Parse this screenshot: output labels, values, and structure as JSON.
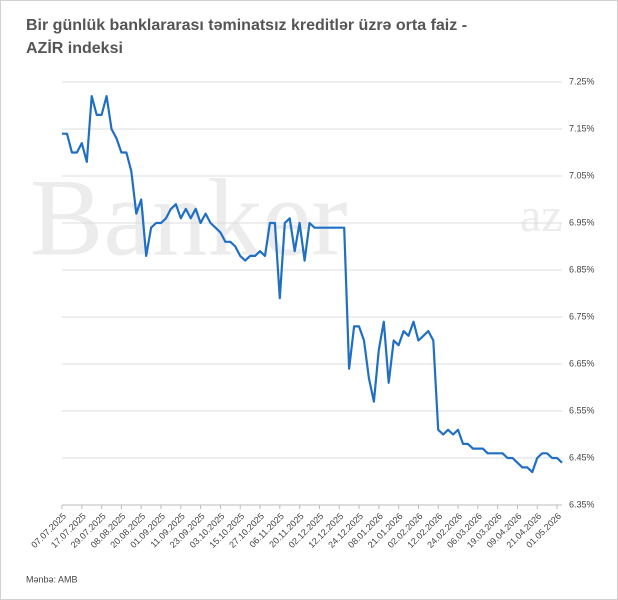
{
  "chart_data": {
    "type": "line",
    "title_lines": [
      "Bir günlük banklararası təminatsız kreditlər üzrə orta faiz -",
      "AZİR indeksi"
    ],
    "watermark": "Banker",
    "watermark_suffix": "az",
    "source": "Mənbə: AMB",
    "color": "#1f6fc5",
    "grid": true,
    "ylim": [
      6.35,
      7.25
    ],
    "yticks": [
      {
        "value": 6.35,
        "label": "6.35%"
      },
      {
        "value": 6.45,
        "label": "6.45%"
      },
      {
        "value": 6.55,
        "label": "6.55%"
      },
      {
        "value": 6.65,
        "label": "6.65%"
      },
      {
        "value": 6.75,
        "label": "6.75%"
      },
      {
        "value": 6.85,
        "label": "6.85%"
      },
      {
        "value": 6.95,
        "label": "6.95%"
      },
      {
        "value": 7.05,
        "label": "7.05%"
      },
      {
        "value": 7.15,
        "label": "7.15%"
      },
      {
        "value": 7.25,
        "label": "7.25%"
      }
    ],
    "categories": [
      "07.07.2025",
      null,
      null,
      null,
      "17.07.2025",
      null,
      null,
      null,
      "29.07.2025",
      null,
      null,
      null,
      "08.08.2025",
      null,
      null,
      null,
      "20.08.2025",
      null,
      null,
      null,
      "01.09.2025",
      null,
      null,
      null,
      "11.09.2025",
      null,
      null,
      null,
      "23.09.2025",
      null,
      null,
      null,
      "03.10.2025",
      null,
      null,
      null,
      "15.10.2025",
      null,
      null,
      null,
      "27.10.2025",
      null,
      null,
      null,
      "06.11.2025",
      null,
      null,
      null,
      "20.11.2025",
      null,
      null,
      null,
      "02.12.2025",
      null,
      null,
      null,
      "12.12.2025",
      null,
      null,
      null,
      "24.12.2025",
      null,
      null,
      null,
      "08.01.2026",
      null,
      null,
      null,
      "21.01.2026",
      null,
      null,
      null,
      "02.02.2026",
      null,
      null,
      null,
      "12.02.2026",
      null,
      null,
      null,
      "24.02.2026",
      null,
      null,
      null,
      "06.03.2026",
      null,
      null,
      null,
      "19.03.2026",
      null,
      null,
      null,
      "09.04.2026",
      null,
      null,
      null,
      "21.04.2026",
      null,
      null,
      null,
      "01.05.2026",
      null
    ],
    "values": [
      7.14,
      7.14,
      7.1,
      7.1,
      7.12,
      7.08,
      7.22,
      7.18,
      7.18,
      7.22,
      7.15,
      7.13,
      7.1,
      7.1,
      7.06,
      6.97,
      7.0,
      6.88,
      6.94,
      6.95,
      6.95,
      6.96,
      6.98,
      6.99,
      6.96,
      6.98,
      6.96,
      6.98,
      6.95,
      6.97,
      6.95,
      6.94,
      6.93,
      6.91,
      6.91,
      6.9,
      6.88,
      6.87,
      6.88,
      6.88,
      6.89,
      6.88,
      6.95,
      6.95,
      6.79,
      6.95,
      6.96,
      6.89,
      6.95,
      6.87,
      6.95,
      6.94,
      6.94,
      6.94,
      6.94,
      6.94,
      6.94,
      6.94,
      6.64,
      6.73,
      6.73,
      6.7,
      6.62,
      6.57,
      6.68,
      6.74,
      6.61,
      6.7,
      6.69,
      6.72,
      6.71,
      6.74,
      6.7,
      6.71,
      6.72,
      6.7,
      6.51,
      6.5,
      6.51,
      6.5,
      6.51,
      6.48,
      6.48,
      6.47,
      6.47,
      6.47,
      6.46,
      6.46,
      6.46,
      6.46,
      6.45,
      6.45,
      6.44,
      6.43,
      6.43,
      6.42,
      6.45,
      6.46,
      6.46,
      6.45,
      6.45,
      6.44
    ]
  }
}
